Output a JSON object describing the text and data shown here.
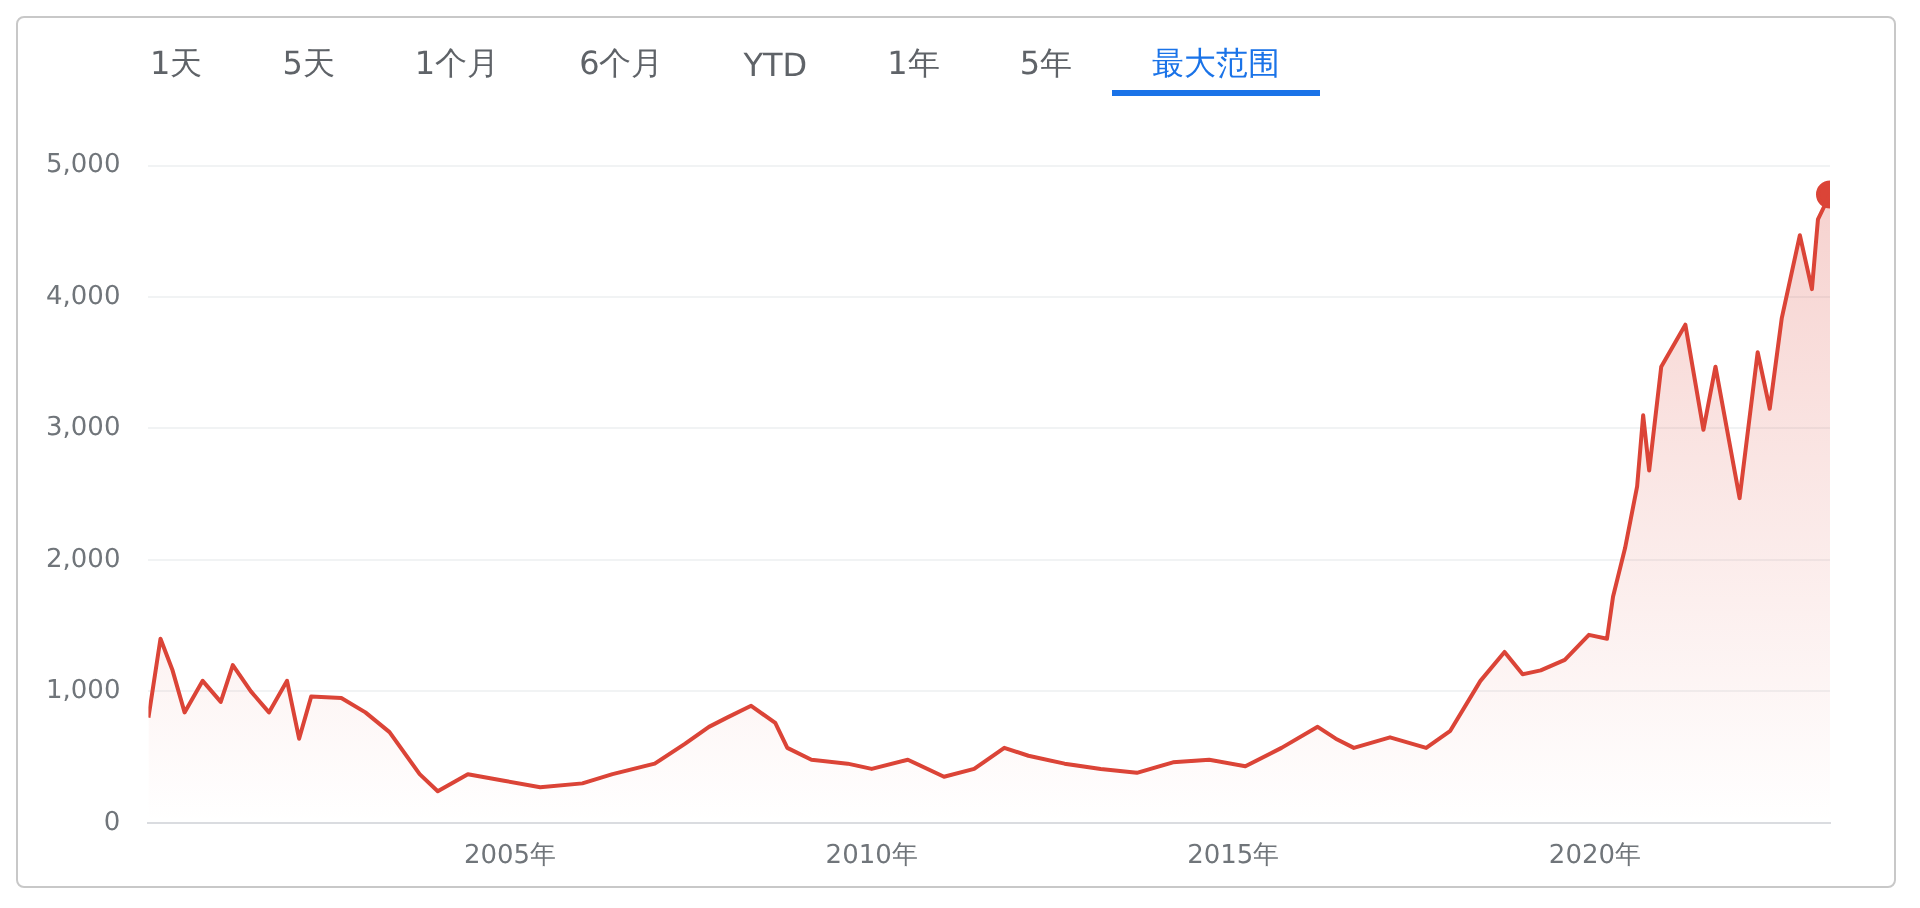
{
  "chart_data": {
    "type": "area",
    "annotations": [
      "1天",
      "5天",
      "1个月",
      "6个月",
      "YTD",
      "1年",
      "5年",
      "最大范围"
    ],
    "x": [
      "2000-01",
      "2000-03",
      "2000-05",
      "2000-07",
      "2000-10",
      "2001-01",
      "2001-03",
      "2001-06",
      "2001-09",
      "2001-12",
      "2002-02",
      "2002-04",
      "2002-09",
      "2003-01",
      "2003-05",
      "2003-10",
      "2004-01",
      "2004-06",
      "2004-12",
      "2005-06",
      "2006-01",
      "2006-06",
      "2007-01",
      "2007-06",
      "2007-10",
      "2008-01",
      "2008-05",
      "2008-09",
      "2008-11",
      "2009-03",
      "2009-09",
      "2010-01",
      "2010-07",
      "2011-01",
      "2011-06",
      "2011-11",
      "2012-03",
      "2012-09",
      "2013-03",
      "2013-09",
      "2014-03",
      "2014-09",
      "2015-03",
      "2015-09",
      "2016-03",
      "2016-06",
      "2016-09",
      "2017-03",
      "2017-09",
      "2018-01",
      "2018-06",
      "2018-10",
      "2019-01",
      "2019-04",
      "2019-08",
      "2019-12",
      "2020-03",
      "2020-04",
      "2020-06",
      "2020-08",
      "2020-09",
      "2020-10",
      "2020-12",
      "2021-04",
      "2021-07",
      "2021-09",
      "2022-01",
      "2022-04",
      "2022-06",
      "2022-08",
      "2022-11",
      "2023-01",
      "2023-02",
      "2023-04"
    ],
    "series": [
      {
        "color": "#db4437",
        "values": [
          800,
          1400,
          1160,
          840,
          1080,
          920,
          1200,
          1000,
          840,
          1080,
          640,
          960,
          950,
          840,
          690,
          370,
          240,
          370,
          320,
          270,
          300,
          370,
          450,
          600,
          730,
          800,
          890,
          760,
          570,
          480,
          450,
          410,
          480,
          350,
          410,
          570,
          510,
          450,
          410,
          380,
          460,
          480,
          430,
          570,
          730,
          640,
          570,
          650,
          570,
          700,
          1080,
          1300,
          1130,
          1160,
          1240,
          1430,
          1400,
          1720,
          2090,
          2560,
          3100,
          2680,
          3470,
          3790,
          2990,
          3470,
          2470,
          3580,
          3150,
          3840,
          4470,
          4060,
          4590,
          4780
        ]
      },
      {
        "type": "scatter",
        "marker": "circle",
        "color": "#db4437",
        "x": [
          "2023-04"
        ],
        "values": [
          4780
        ]
      }
    ],
    "xlim": [
      "2000-01",
      "2023-04"
    ],
    "xticks": [
      {
        "value": "2005-01",
        "label": "2005年"
      },
      {
        "value": "2010-01",
        "label": "2010年"
      },
      {
        "value": "2015-01",
        "label": "2015年"
      },
      {
        "value": "2020-01",
        "label": "2020年"
      }
    ],
    "ylim": [
      0,
      5000
    ],
    "yticks": [
      {
        "value": 0,
        "label": "0"
      },
      {
        "value": 1000,
        "label": "1,000"
      },
      {
        "value": 2000,
        "label": "2,000"
      },
      {
        "value": 3000,
        "label": "3,000"
      },
      {
        "value": 4000,
        "label": "4,000"
      },
      {
        "value": 5000,
        "label": "5,000"
      }
    ],
    "grid": "y",
    "marker": "none",
    "line_style": "solid",
    "legend": false
  }
}
